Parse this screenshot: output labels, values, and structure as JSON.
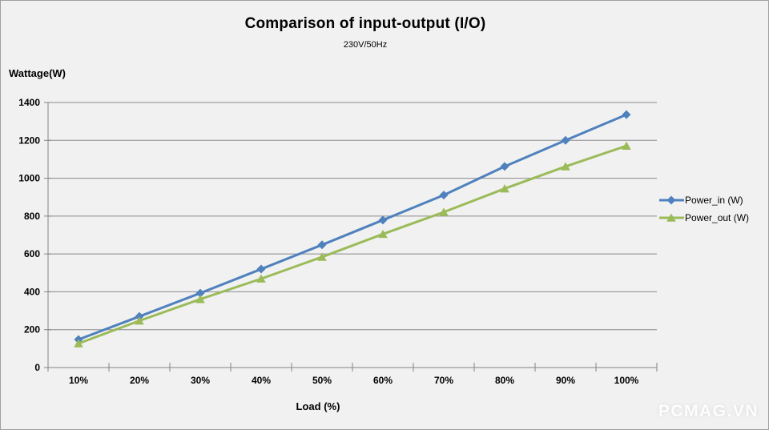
{
  "chart": {
    "title": "Comparison of input-output (I/O)",
    "subtitle": "230V/50Hz",
    "y_axis_title": "Wattage(W)",
    "x_axis_title": "Load (%)"
  },
  "watermark": "PCMAG.VN",
  "colors": {
    "background": "#F1F1F1",
    "frame_border": "#A0A0A0",
    "gridline": "#8A8A8A",
    "axis": "#848484",
    "power_in": "#4F81BD",
    "power_out": "#9BBB59",
    "watermark_text": "#FFFFFF",
    "text": "#000000"
  },
  "chart_data": {
    "type": "line",
    "title": "Comparison of input-output (I/O)",
    "subtitle": "230V/50Hz",
    "xlabel": "Load (%)",
    "ylabel": "Wattage(W)",
    "categories": [
      "10%",
      "20%",
      "30%",
      "40%",
      "50%",
      "60%",
      "70%",
      "80%",
      "90%",
      "100%"
    ],
    "series": [
      {
        "name": "Power_in (W)",
        "values": [
          148,
          270,
          393,
          520,
          648,
          779,
          911,
          1062,
          1200,
          1336
        ],
        "color": "#4F81BD",
        "marker": "diamond"
      },
      {
        "name": "Power_out (W)",
        "values": [
          127,
          247,
          361,
          469,
          584,
          705,
          821,
          945,
          1062,
          1171
        ],
        "color": "#9BBB59",
        "marker": "triangle"
      }
    ],
    "ylim": [
      0,
      1400
    ],
    "yticks": [
      0,
      200,
      400,
      600,
      800,
      1000,
      1200,
      1400
    ],
    "grid": true,
    "legend_position": "right"
  }
}
